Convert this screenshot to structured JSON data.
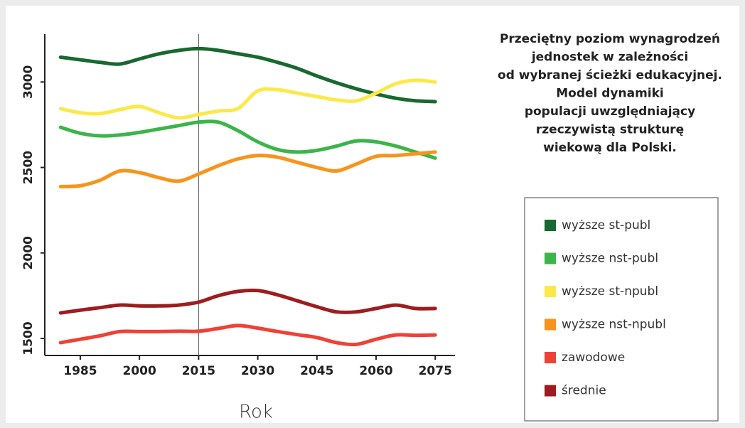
{
  "chart_data": {
    "type": "line",
    "title": [
      "Przeciętny poziom wynagrodzeń",
      "jednostek w zależności",
      "od wybranej ścieżki edukacyjnej.",
      "Model dynamiki",
      "populacji uwzględniający",
      "rzeczywistą strukturę",
      "wiekową dla Polski."
    ],
    "x_label": "Rok",
    "x": [
      1980,
      1985,
      1990,
      1995,
      2000,
      2005,
      2010,
      2015,
      2020,
      2025,
      2030,
      2035,
      2040,
      2045,
      2050,
      2055,
      2060,
      2065,
      2070,
      2075
    ],
    "xlim": [
      1976,
      2080
    ],
    "xticks": [
      1985,
      2000,
      2015,
      2030,
      2045,
      2060,
      2075
    ],
    "ylim": [
      1400,
      3280
    ],
    "yticks": [
      1500,
      2000,
      2500,
      3000
    ],
    "vline": 2015,
    "series": [
      {
        "name": "wyższe st-publ",
        "color": "#17692f",
        "values": [
          3145,
          3130,
          3115,
          3105,
          3135,
          3165,
          3185,
          3195,
          3185,
          3165,
          3145,
          3115,
          3080,
          3035,
          2995,
          2960,
          2930,
          2905,
          2890,
          2885
        ]
      },
      {
        "name": "wyższe nst-publ",
        "color": "#3bb54a",
        "values": [
          2735,
          2700,
          2685,
          2690,
          2705,
          2725,
          2745,
          2765,
          2765,
          2715,
          2650,
          2605,
          2590,
          2600,
          2625,
          2655,
          2650,
          2625,
          2590,
          2555
        ]
      },
      {
        "name": "wyższe st-npubl",
        "color": "#fde84a",
        "values": [
          2844,
          2820,
          2815,
          2838,
          2857,
          2820,
          2790,
          2810,
          2830,
          2845,
          2948,
          2955,
          2935,
          2915,
          2895,
          2890,
          2935,
          2990,
          3010,
          3000
        ]
      },
      {
        "name": "wyższe nst-npubl",
        "color": "#f7941d",
        "values": [
          2388,
          2393,
          2425,
          2479,
          2470,
          2440,
          2420,
          2462,
          2510,
          2550,
          2570,
          2560,
          2530,
          2500,
          2480,
          2520,
          2565,
          2570,
          2580,
          2590
        ]
      },
      {
        "name": "zawodowe",
        "color": "#ef4136",
        "values": [
          1475,
          1495,
          1515,
          1540,
          1540,
          1540,
          1542,
          1542,
          1558,
          1575,
          1560,
          1540,
          1522,
          1505,
          1475,
          1465,
          1495,
          1520,
          1518,
          1520
        ]
      },
      {
        "name": "średnie",
        "color": "#9e1c20",
        "values": [
          1649,
          1665,
          1680,
          1695,
          1690,
          1690,
          1695,
          1712,
          1750,
          1775,
          1780,
          1755,
          1720,
          1685,
          1655,
          1655,
          1675,
          1695,
          1675,
          1675
        ]
      }
    ]
  }
}
